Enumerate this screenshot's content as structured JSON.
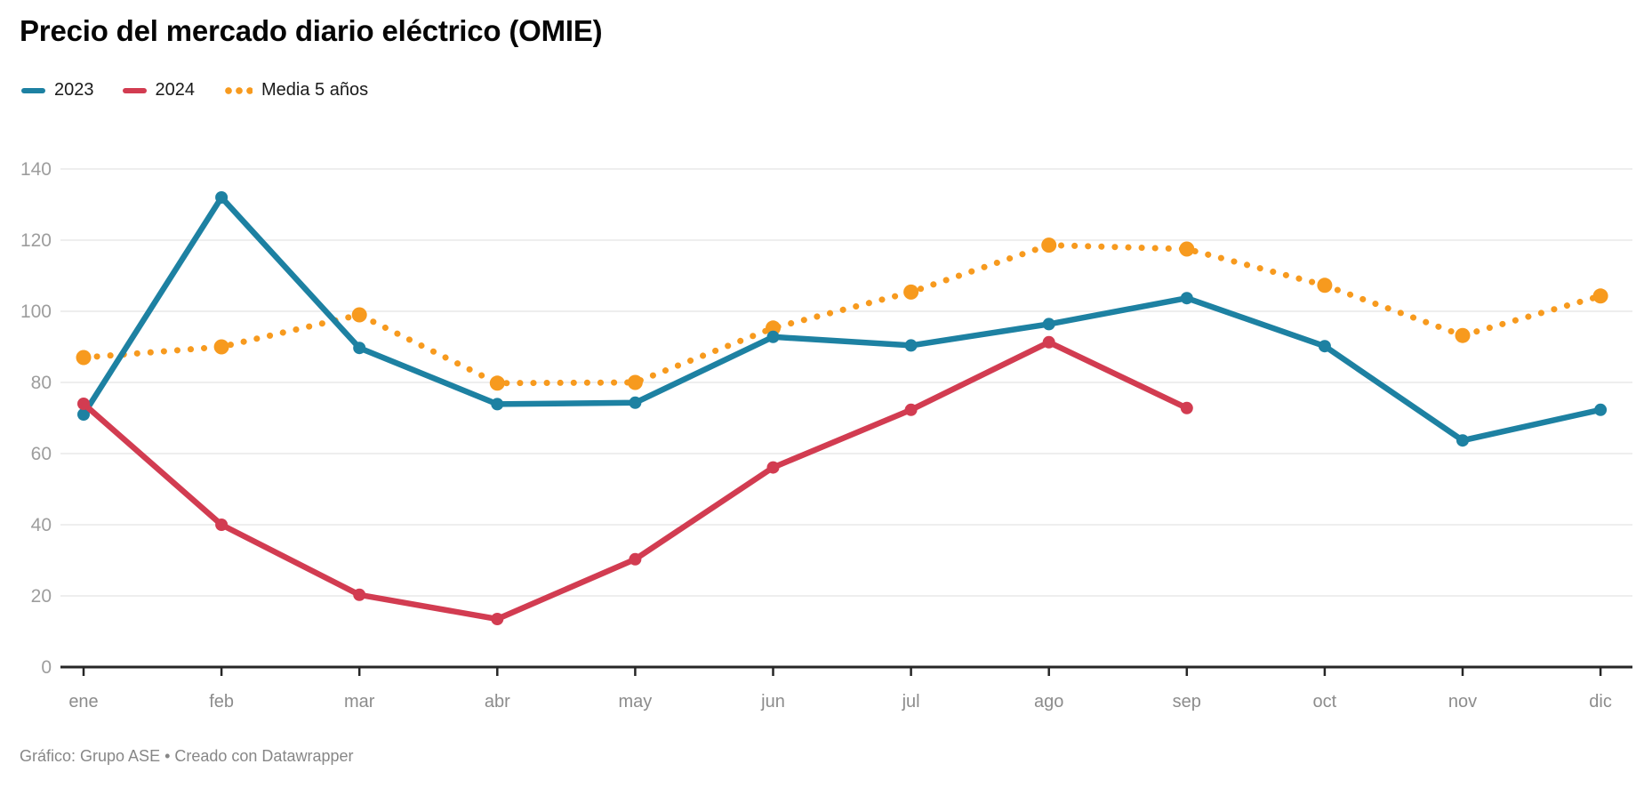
{
  "header": {
    "title": "Precio del mercado diario eléctrico (OMIE)"
  },
  "legend": [
    {
      "label": "2023",
      "color": "#1d81a2",
      "style": "solid"
    },
    {
      "label": "2024",
      "color": "#d23c51",
      "style": "solid"
    },
    {
      "label": "Media 5 años",
      "color": "#f79a1e",
      "style": "dotted"
    }
  ],
  "chart_data": {
    "type": "line",
    "title": "Precio del mercado diario eléctrico (OMIE)",
    "xlabel": "",
    "ylabel": "",
    "categories": [
      "ene",
      "feb",
      "mar",
      "abr",
      "may",
      "jun",
      "jul",
      "ago",
      "sep",
      "oct",
      "nov",
      "dic"
    ],
    "series": [
      {
        "name": "2023",
        "color": "#1d81a2",
        "style": "solid",
        "values": [
          71,
          132,
          89.7,
          73.9,
          74.3,
          92.8,
          90.4,
          96.4,
          103.7,
          90.2,
          63.7,
          72.3
        ]
      },
      {
        "name": "2024",
        "color": "#d23c51",
        "style": "solid",
        "values": [
          74,
          40,
          20.3,
          13.5,
          30.3,
          56.1,
          72.3,
          91.3,
          72.8,
          null,
          null,
          null
        ]
      },
      {
        "name": "Media 5 años",
        "color": "#f79a1e",
        "style": "dotted",
        "values": [
          87,
          90,
          99,
          79.8,
          80,
          95.3,
          105.4,
          118.6,
          117.5,
          107.3,
          93.2,
          104.3
        ]
      }
    ],
    "ylim": [
      0,
      140
    ],
    "yticks": [
      0,
      20,
      40,
      60,
      80,
      100,
      120,
      140
    ],
    "grid": true,
    "legend_position": "top-left",
    "colors": {
      "gridline": "#e9e9e9",
      "axis": "#262626",
      "ytick_label": "#9d9d9d",
      "xtick_label": "#8c8c8c"
    }
  },
  "footer": {
    "credit": "Gráfico: Grupo ASE • Creado con Datawrapper"
  }
}
